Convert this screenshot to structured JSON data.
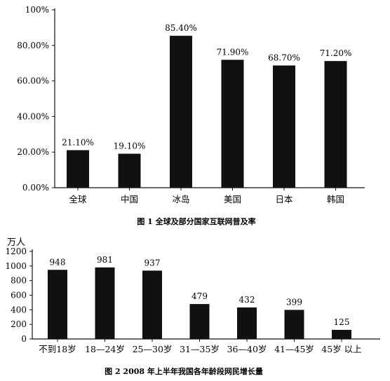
{
  "chart_data": [
    {
      "type": "bar",
      "title": "图 1   全球及部分国家互联网普及率",
      "categories": [
        "全球",
        "中国",
        "冰岛",
        "美国",
        "日本",
        "韩国"
      ],
      "values": [
        21.1,
        19.1,
        85.4,
        71.9,
        68.7,
        71.2
      ],
      "value_labels": [
        "21.10%",
        "19.10%",
        "85.40%",
        "71.90%",
        "68.70%",
        "71.20%"
      ],
      "ytick_values": [
        0,
        20,
        40,
        60,
        80,
        100
      ],
      "ytick_labels": [
        "0.00%",
        "20.00%",
        "40.00%",
        "60.00%",
        "80.00%",
        "100%"
      ],
      "ylim": [
        0,
        100
      ],
      "bar_color": "#111111",
      "grid": false
    },
    {
      "type": "bar",
      "title": "图 2   2008 年上半年我国各年龄段网民增长量",
      "ylabel": "万人",
      "categories": [
        "不到18岁",
        "18—24岁",
        "25—30岁",
        "31—35岁",
        "36—40岁",
        "41—45岁",
        "45岁 以上"
      ],
      "values": [
        948,
        981,
        937,
        479,
        432,
        399,
        125
      ],
      "value_labels": [
        "948",
        "981",
        "937",
        "479",
        "432",
        "399",
        "125"
      ],
      "ytick_values": [
        0,
        200,
        400,
        600,
        800,
        1000,
        1200
      ],
      "ytick_labels": [
        "0",
        "200",
        "400",
        "600",
        "800",
        "1000",
        "1200"
      ],
      "ylim": [
        0,
        1200
      ],
      "bar_color": "#111111",
      "grid": false
    }
  ]
}
